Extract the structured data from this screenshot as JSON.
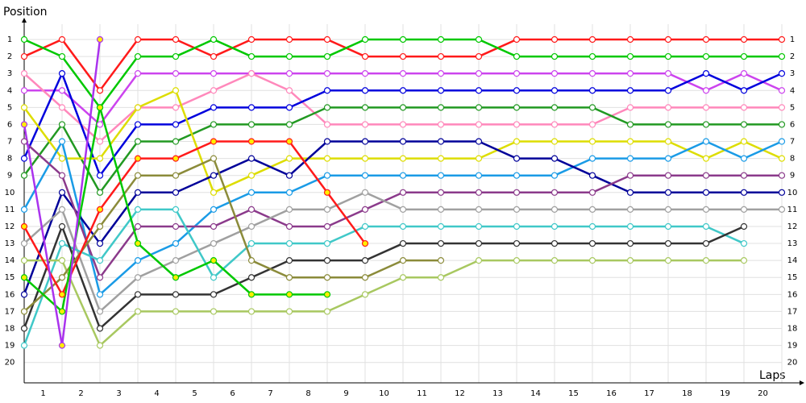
{
  "chart_data": {
    "type": "line",
    "y_title": "Position",
    "x_title": "Laps",
    "x": [
      0,
      1,
      2,
      3,
      4,
      5,
      6,
      7,
      8,
      9,
      10,
      11,
      12,
      13,
      14,
      15,
      16,
      17,
      18,
      19,
      20
    ],
    "xlim": [
      0,
      20
    ],
    "xticks": [
      {
        "value": 0.5,
        "label": "1"
      },
      {
        "value": 1.5,
        "label": "2"
      },
      {
        "value": 2.5,
        "label": "3"
      },
      {
        "value": 3.5,
        "label": "4"
      },
      {
        "value": 4.5,
        "label": "5"
      },
      {
        "value": 5.5,
        "label": "6"
      },
      {
        "value": 6.5,
        "label": "7"
      },
      {
        "value": 7.5,
        "label": "8"
      },
      {
        "value": 8.5,
        "label": "9"
      },
      {
        "value": 9.5,
        "label": "10"
      },
      {
        "value": 10.5,
        "label": "11"
      },
      {
        "value": 11.5,
        "label": "12"
      },
      {
        "value": 12.5,
        "label": "13"
      },
      {
        "value": 13.5,
        "label": "14"
      },
      {
        "value": 14.5,
        "label": "15"
      },
      {
        "value": 15.5,
        "label": "16"
      },
      {
        "value": 16.5,
        "label": "17"
      },
      {
        "value": 17.5,
        "label": "18"
      },
      {
        "value": 18.5,
        "label": "19"
      },
      {
        "value": 19.5,
        "label": "20"
      }
    ],
    "ylim": [
      0.1,
      21.2
    ],
    "y_inverted": true,
    "yticks": [
      1,
      2,
      3,
      4,
      5,
      6,
      7,
      8,
      9,
      10,
      11,
      12,
      13,
      14,
      15,
      16,
      17,
      18,
      19,
      20
    ],
    "grid": true,
    "series": [
      {
        "color": "#ff1a1a",
        "marker_fill": "#ffffff",
        "values": [
          2,
          1,
          4,
          1,
          1,
          2,
          1,
          1,
          1,
          2,
          2,
          2,
          2,
          1,
          1,
          1,
          1,
          1,
          1,
          1,
          1
        ]
      },
      {
        "color": "#00c800",
        "marker_fill": "#ffffff",
        "values": [
          1,
          2,
          5,
          2,
          2,
          1,
          2,
          2,
          2,
          1,
          1,
          1,
          1,
          2,
          2,
          2,
          2,
          2,
          2,
          2,
          2
        ]
      },
      {
        "color": "#cc44ee",
        "marker_fill": "#ffffff",
        "values": [
          4,
          4,
          6,
          3,
          3,
          3,
          3,
          3,
          3,
          3,
          3,
          3,
          3,
          3,
          3,
          3,
          3,
          3,
          4,
          3,
          4
        ]
      },
      {
        "color": "#ff88bb",
        "marker_fill": "#ffffff",
        "values": [
          3,
          5,
          7,
          5,
          5,
          4,
          3,
          4,
          6,
          6,
          6,
          6,
          6,
          6,
          6,
          6,
          5,
          5,
          5,
          5,
          5
        ]
      },
      {
        "color": "#0000dd",
        "marker_fill": "#ffffff",
        "values": [
          8,
          3,
          9,
          6,
          6,
          5,
          5,
          5,
          4,
          4,
          4,
          4,
          4,
          4,
          4,
          4,
          4,
          4,
          3,
          4,
          3
        ]
      },
      {
        "color": "#229922",
        "marker_fill": "#ffffff",
        "values": [
          9,
          6,
          10,
          7,
          7,
          6,
          6,
          6,
          5,
          5,
          5,
          5,
          5,
          5,
          5,
          5,
          6,
          6,
          6,
          6,
          6
        ]
      },
      {
        "color": "#dddd00",
        "marker_fill": "#ffffff",
        "values": [
          5,
          8,
          8,
          5,
          4,
          10,
          9,
          8,
          8,
          8,
          8,
          8,
          8,
          7,
          7,
          7,
          7,
          7,
          8,
          7,
          8
        ]
      },
      {
        "color": "#1a9be6",
        "marker_fill": "#ffffff",
        "values": [
          11,
          7,
          16,
          14,
          13,
          11,
          10,
          10,
          9,
          9,
          9,
          9,
          9,
          9,
          9,
          8,
          8,
          8,
          7,
          8,
          7
        ]
      },
      {
        "color": "#000099",
        "marker_fill": "#ffffff",
        "values": [
          16,
          10,
          13,
          10,
          10,
          9,
          8,
          9,
          7,
          7,
          7,
          7,
          7,
          8,
          8,
          9,
          10,
          10,
          10,
          10,
          10
        ]
      },
      {
        "color": "#8b3a8b",
        "marker_fill": "#ffffff",
        "values": [
          7,
          9,
          15,
          12,
          12,
          12,
          11,
          12,
          12,
          11,
          10,
          10,
          10,
          10,
          10,
          10,
          9,
          9,
          9,
          9,
          9
        ]
      },
      {
        "color": "#a0a0a0",
        "marker_fill": "#ffffff",
        "values": [
          13,
          11,
          17,
          15,
          14,
          13,
          12,
          11,
          11,
          10,
          11,
          11,
          11,
          11,
          11,
          11,
          11,
          11,
          11,
          11,
          11
        ]
      },
      {
        "color": "#40c8c8",
        "marker_fill": "#ffffff",
        "values": [
          19,
          13,
          14,
          11,
          11,
          15,
          13,
          13,
          13,
          12,
          12,
          12,
          12,
          12,
          12,
          12,
          12,
          12,
          12,
          13,
          null
        ]
      },
      {
        "color": "#333333",
        "marker_fill": "#ffffff",
        "values": [
          18,
          12,
          18,
          16,
          16,
          16,
          15,
          14,
          14,
          14,
          13,
          13,
          13,
          13,
          13,
          13,
          13,
          13,
          13,
          12,
          null
        ]
      },
      {
        "color": "#a8c860",
        "marker_fill": "#ffffff",
        "values": [
          14,
          14,
          19,
          17,
          17,
          17,
          17,
          17,
          17,
          16,
          15,
          15,
          14,
          14,
          14,
          14,
          14,
          14,
          14,
          14,
          null
        ]
      },
      {
        "color": "#8b8b3a",
        "marker_fill": "#ffffff",
        "values": [
          17,
          15,
          12,
          9,
          9,
          8,
          14,
          15,
          15,
          15,
          14,
          14,
          null,
          null,
          null,
          null,
          null,
          null,
          null,
          null,
          null
        ]
      },
      {
        "color": "#ff1a1a",
        "marker_fill": "#ffee00",
        "values": [
          12,
          16,
          11,
          8,
          8,
          7,
          7,
          7,
          10,
          13,
          null,
          null,
          null,
          null,
          null,
          null,
          null,
          null,
          null,
          null,
          null
        ]
      },
      {
        "color": "#00c800",
        "marker_fill": "#ffee00",
        "values": [
          15,
          17,
          5,
          13,
          15,
          14,
          16,
          16,
          16,
          null,
          null,
          null,
          null,
          null,
          null,
          null,
          null,
          null,
          null,
          null,
          null
        ]
      },
      {
        "color": "#aa33ee",
        "marker_fill": "#ffee00",
        "values": [
          6,
          19,
          1,
          null,
          null,
          null,
          null,
          null,
          null,
          null,
          null,
          null,
          null,
          null,
          null,
          null,
          null,
          null,
          null,
          null,
          null
        ]
      }
    ]
  }
}
